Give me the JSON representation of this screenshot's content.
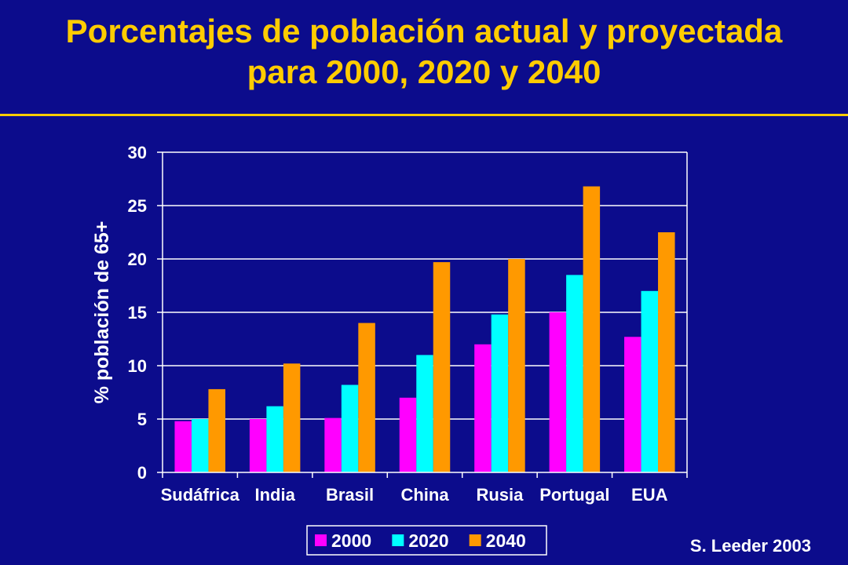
{
  "title": {
    "line1": "Porcentajes de población actual y proyectada",
    "line2": "para 2000, 2020 y 2040"
  },
  "source": "S. Leeder 2003",
  "colors": {
    "background": "#0c0c8c",
    "title": "#ffcc00",
    "text": "#ffffff",
    "gridline": "#ffffff"
  },
  "chart_data": {
    "type": "bar",
    "title": "Porcentajes de población actual y proyectada para 2000, 2020 y 2040",
    "xlabel": "",
    "ylabel": "% población de 65+",
    "ylim": [
      0,
      30
    ],
    "yticks": [
      0,
      5,
      10,
      15,
      20,
      25,
      30
    ],
    "grid": true,
    "legend": "bottom-center",
    "categories": [
      "Sudáfrica",
      "India",
      "Brasil",
      "China",
      "Rusia",
      "Portugal",
      "EUA"
    ],
    "series": [
      {
        "name": "2000",
        "color": "#ff00ff",
        "values": [
          4.8,
          5.0,
          5.1,
          7.0,
          12.0,
          15.0,
          12.7
        ]
      },
      {
        "name": "2020",
        "color": "#00ffff",
        "values": [
          5.0,
          6.2,
          8.2,
          11.0,
          14.8,
          18.5,
          17.0
        ]
      },
      {
        "name": "2040",
        "color": "#ff9900",
        "values": [
          7.8,
          10.2,
          14.0,
          19.7,
          20.0,
          26.8,
          22.5
        ]
      }
    ]
  }
}
